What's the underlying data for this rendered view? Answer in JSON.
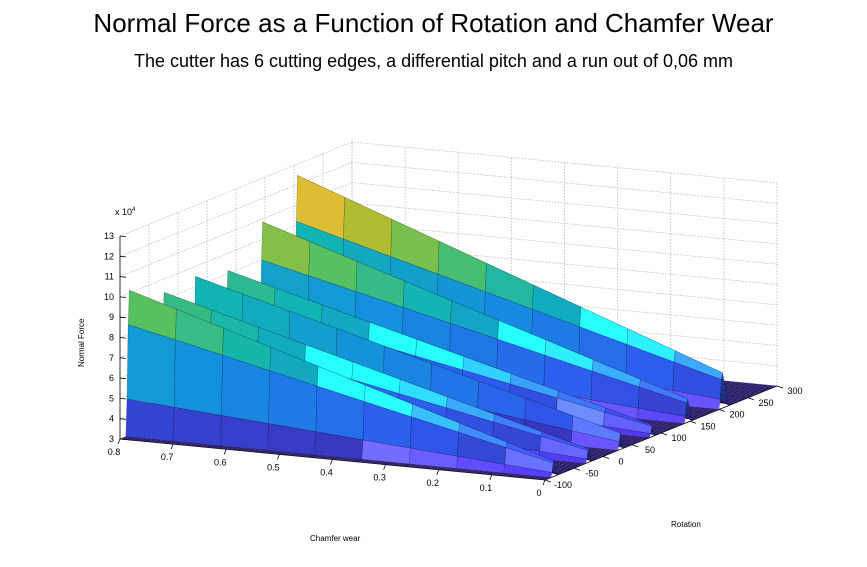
{
  "chart_data": {
    "type": "surface",
    "title": "Normal Force as a Function of Rotation and Chamfer Wear",
    "subtitle": "The cutter has 6 cutting edges, a differential pitch and a run out of 0,06 mm",
    "xlabel": "Chamfer wear",
    "ylabel": "Rotation",
    "zlabel": "Normal Force",
    "z_multiplier_label": "x 10",
    "z_multiplier_exponent": "4",
    "x_ticks": [
      "0.8",
      "0.7",
      "0.6",
      "0.5",
      "0.4",
      "0.3",
      "0.2",
      "0.1",
      "0"
    ],
    "y_ticks": [
      "-100",
      "-50",
      "0",
      "50",
      "100",
      "150",
      "200",
      "250",
      "300"
    ],
    "z_ticks": [
      "3",
      "4",
      "5",
      "6",
      "7",
      "8",
      "9",
      "10",
      "11",
      "12",
      "13"
    ],
    "xlim": [
      0,
      0.8
    ],
    "ylim": [
      -100,
      300
    ],
    "zlim": [
      3,
      13
    ],
    "colormap": "parula",
    "grid": true,
    "cutting_edges": 6,
    "peak_rotation_deg": [
      -85,
      -25,
      30,
      85,
      145,
      205
    ],
    "peak_force_at_max_wear": [
      10.3,
      9.5,
      9.5,
      9.3,
      11.0,
      12.6
    ],
    "peak_force_at_zero_wear": [
      3.9,
      3.8,
      3.8,
      3.7,
      4.3,
      4.9
    ],
    "min_force": 3.0
  }
}
